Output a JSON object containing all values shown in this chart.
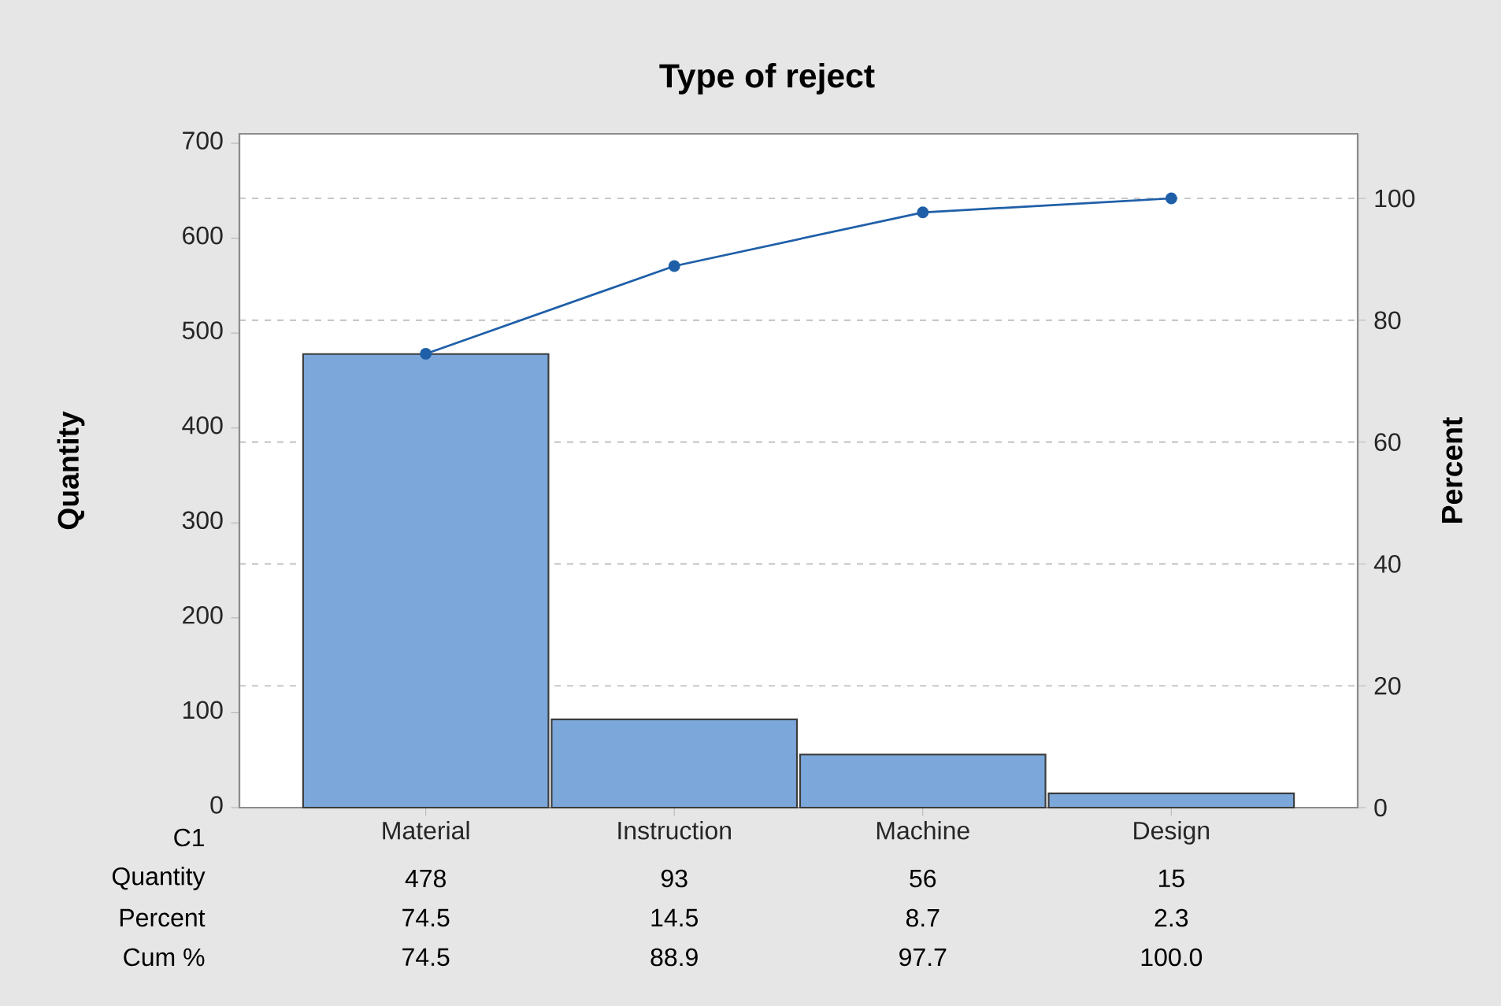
{
  "chart_data": {
    "type": "bar",
    "title": "Type of reject",
    "xlabel": "C1",
    "ylabel": "Quantity",
    "y2label": "Percent",
    "categories": [
      "Material",
      "Instruction",
      "Machine",
      "Design"
    ],
    "series": [
      {
        "color": "#7ba7da",
        "values": [
          478,
          93,
          56,
          15
        ],
        "value_labels": [
          "478",
          "93",
          "56",
          "15"
        ]
      },
      {
        "type": "line",
        "axis": "y2",
        "color": "#1f5fa8",
        "values": [
          74.5,
          88.9,
          97.7,
          100.0
        ],
        "value_labels": [
          "74.5",
          "88.9",
          "97.7",
          "100.0"
        ]
      }
    ],
    "annotations": [
      "Quantity",
      "Percent",
      "74.5",
      "14.5",
      "8.7",
      "2.3",
      "Cum %"
    ],
    "marker": "circle",
    "line_style": "solid",
    "grid": "y",
    "ylim": [
      0,
      710
    ],
    "yticks": [
      0,
      100,
      200,
      300,
      400,
      500,
      600,
      700
    ],
    "y2lim": [
      0,
      110.6
    ],
    "y2ticks": [
      0,
      20,
      40,
      60,
      80,
      100
    ]
  }
}
